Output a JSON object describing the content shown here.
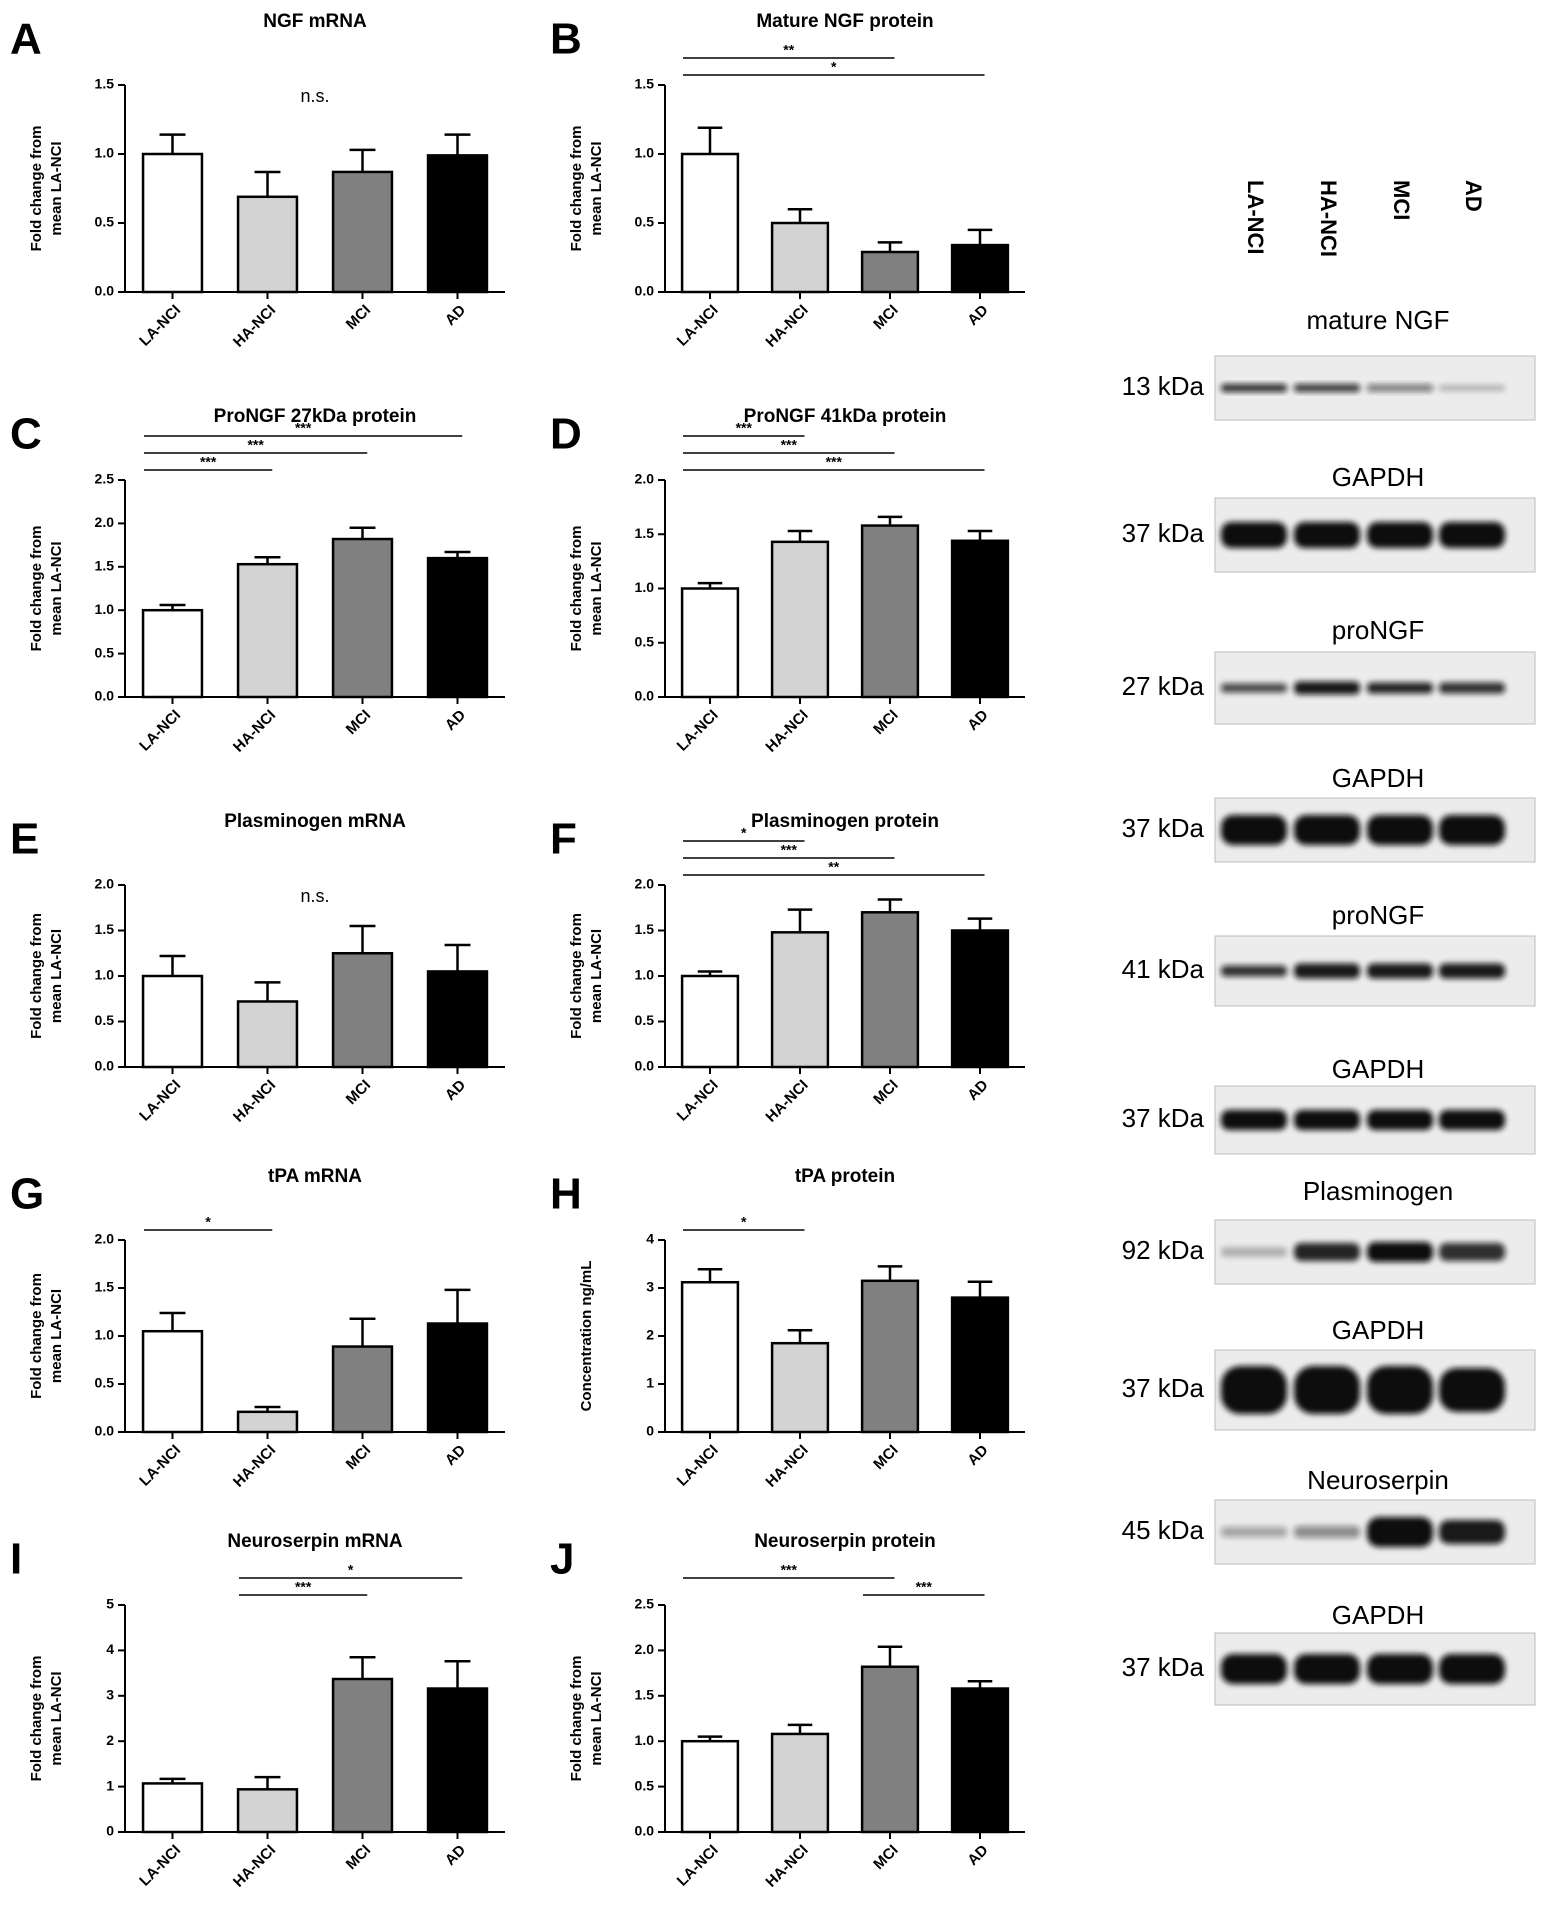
{
  "chart_data": [
    {
      "type": "bar",
      "panel": "A",
      "title": "NGF mRNA",
      "ylabel": [
        "Fold change from",
        "mean LA-NCI"
      ],
      "categories": [
        "LA-NCI",
        "HA-NCI",
        "MCI",
        "AD"
      ],
      "values": [
        1.0,
        0.69,
        0.87,
        0.99
      ],
      "errors": [
        0.14,
        0.18,
        0.16,
        0.15
      ],
      "colors": [
        "#ffffff",
        "#d3d3d3",
        "#808080",
        "#000000"
      ],
      "ylim": [
        0,
        1.5
      ],
      "yticks": [
        {
          "value": 0,
          "label": "0.0"
        },
        0.5,
        {
          "value": 1,
          "label": "1.0"
        },
        1.5
      ],
      "annotation": "n.s.",
      "brackets": []
    },
    {
      "type": "bar",
      "panel": "B",
      "title": "Mature NGF protein",
      "ylabel": [
        "Fold change from",
        "mean LA-NCI"
      ],
      "categories": [
        "LA-NCI",
        "HA-NCI",
        "MCI",
        "AD"
      ],
      "values": [
        1.0,
        0.5,
        0.29,
        0.34
      ],
      "errors": [
        0.19,
        0.1,
        0.07,
        0.11
      ],
      "colors": [
        "#ffffff",
        "#d3d3d3",
        "#808080",
        "#000000"
      ],
      "ylim": [
        0,
        1.5
      ],
      "yticks": [
        {
          "value": 0,
          "label": "0.0"
        },
        0.5,
        {
          "value": 1,
          "label": "1.0"
        },
        1.5
      ],
      "brackets": [
        {
          "label": "**",
          "span": [
            "LA-NCI",
            "MCI"
          ]
        },
        {
          "label": "*",
          "span": [
            "LA-NCI",
            "AD"
          ]
        }
      ]
    },
    {
      "type": "bar",
      "panel": "C",
      "title": "ProNGF 27kDa protein",
      "ylabel": [
        "Fold change from",
        "mean LA-NCI"
      ],
      "categories": [
        "LA-NCI",
        "HA-NCI",
        "MCI",
        "AD"
      ],
      "values": [
        1.0,
        1.53,
        1.82,
        1.6
      ],
      "errors": [
        0.06,
        0.08,
        0.13,
        0.07
      ],
      "colors": [
        "#ffffff",
        "#d3d3d3",
        "#808080",
        "#000000"
      ],
      "ylim": [
        0,
        2.5
      ],
      "yticks": [
        {
          "value": 0,
          "label": "0.0"
        },
        0.5,
        {
          "value": 1,
          "label": "1.0"
        },
        1.5,
        {
          "value": 2,
          "label": "2.0"
        },
        2.5
      ],
      "brackets": [
        {
          "label": "***",
          "span": [
            "LA-NCI",
            "AD"
          ]
        },
        {
          "label": "***",
          "span": [
            "LA-NCI",
            "MCI"
          ]
        },
        {
          "label": "***",
          "span": [
            "LA-NCI",
            "HA-NCI"
          ]
        }
      ]
    },
    {
      "type": "bar",
      "panel": "D",
      "title": "ProNGF 41kDa protein",
      "ylabel": [
        "Fold change from",
        "mean LA-NCI"
      ],
      "categories": [
        "LA-NCI",
        "HA-NCI",
        "MCI",
        "AD"
      ],
      "values": [
        1.0,
        1.43,
        1.58,
        1.44
      ],
      "errors": [
        0.05,
        0.1,
        0.08,
        0.09
      ],
      "colors": [
        "#ffffff",
        "#d3d3d3",
        "#808080",
        "#000000"
      ],
      "ylim": [
        0,
        2.0
      ],
      "yticks": [
        {
          "value": 0,
          "label": "0.0"
        },
        0.5,
        {
          "value": 1,
          "label": "1.0"
        },
        1.5,
        {
          "value": 2,
          "label": "2.0"
        }
      ],
      "brackets": [
        {
          "label": "***",
          "span": [
            "LA-NCI",
            "HA-NCI"
          ]
        },
        {
          "label": "***",
          "span": [
            "LA-NCI",
            "MCI"
          ]
        },
        {
          "label": "***",
          "span": [
            "LA-NCI",
            "AD"
          ]
        }
      ]
    },
    {
      "type": "bar",
      "panel": "E",
      "title": "Plasminogen mRNA",
      "ylabel": [
        "Fold change from",
        "mean LA-NCI"
      ],
      "categories": [
        "LA-NCI",
        "HA-NCI",
        "MCI",
        "AD"
      ],
      "values": [
        1.0,
        0.72,
        1.25,
        1.05
      ],
      "errors": [
        0.22,
        0.21,
        0.3,
        0.29
      ],
      "colors": [
        "#ffffff",
        "#d3d3d3",
        "#808080",
        "#000000"
      ],
      "ylim": [
        0,
        2.0
      ],
      "yticks": [
        {
          "value": 0,
          "label": "0.0"
        },
        0.5,
        {
          "value": 1,
          "label": "1.0"
        },
        1.5,
        {
          "value": 2,
          "label": "2.0"
        }
      ],
      "annotation": "n.s.",
      "brackets": []
    },
    {
      "type": "bar",
      "panel": "F",
      "title": "Plasminogen protein",
      "ylabel": [
        "Fold change from",
        "mean LA-NCI"
      ],
      "categories": [
        "LA-NCI",
        "HA-NCI",
        "MCI",
        "AD"
      ],
      "values": [
        1.0,
        1.48,
        1.7,
        1.5
      ],
      "errors": [
        0.05,
        0.25,
        0.14,
        0.13
      ],
      "colors": [
        "#ffffff",
        "#d3d3d3",
        "#808080",
        "#000000"
      ],
      "ylim": [
        0,
        2.0
      ],
      "yticks": [
        {
          "value": 0,
          "label": "0.0"
        },
        0.5,
        {
          "value": 1,
          "label": "1.0"
        },
        1.5,
        {
          "value": 2,
          "label": "2.0"
        }
      ],
      "brackets": [
        {
          "label": "*",
          "span": [
            "LA-NCI",
            "HA-NCI"
          ]
        },
        {
          "label": "***",
          "span": [
            "LA-NCI",
            "MCI"
          ]
        },
        {
          "label": "**",
          "span": [
            "LA-NCI",
            "AD"
          ]
        }
      ]
    },
    {
      "type": "bar",
      "panel": "G",
      "title": "tPA mRNA",
      "ylabel": [
        "Fold change from",
        "mean LA-NCI"
      ],
      "categories": [
        "LA-NCI",
        "HA-NCI",
        "MCI",
        "AD"
      ],
      "values": [
        1.05,
        0.21,
        0.89,
        1.13
      ],
      "errors": [
        0.19,
        0.05,
        0.29,
        0.35
      ],
      "colors": [
        "#ffffff",
        "#d3d3d3",
        "#808080",
        "#000000"
      ],
      "ylim": [
        0,
        2.0
      ],
      "yticks": [
        {
          "value": 0,
          "label": "0.0"
        },
        0.5,
        {
          "value": 1,
          "label": "1.0"
        },
        1.5,
        {
          "value": 2,
          "label": "2.0"
        }
      ],
      "brackets": [
        {
          "label": "*",
          "span": [
            "LA-NCI",
            "HA-NCI"
          ]
        }
      ]
    },
    {
      "type": "bar",
      "panel": "H",
      "title": "tPA protein",
      "ylabel": [
        "Concentration ng/mL"
      ],
      "categories": [
        "LA-NCI",
        "HA-NCI",
        "MCI",
        "AD"
      ],
      "values": [
        3.12,
        1.85,
        3.15,
        2.8
      ],
      "errors": [
        0.27,
        0.27,
        0.3,
        0.33
      ],
      "colors": [
        "#ffffff",
        "#d3d3d3",
        "#808080",
        "#000000"
      ],
      "ylim": [
        0,
        4
      ],
      "yticks": [
        0,
        1,
        2,
        3,
        4
      ],
      "brackets": [
        {
          "label": "*",
          "span": [
            "LA-NCI",
            "HA-NCI"
          ]
        }
      ]
    },
    {
      "type": "bar",
      "panel": "I",
      "title": "Neuroserpin mRNA",
      "ylabel": [
        "Fold change from",
        "mean LA-NCI"
      ],
      "categories": [
        "LA-NCI",
        "HA-NCI",
        "MCI",
        "AD"
      ],
      "values": [
        1.07,
        0.94,
        3.37,
        3.16
      ],
      "errors": [
        0.1,
        0.27,
        0.48,
        0.6
      ],
      "colors": [
        "#ffffff",
        "#d3d3d3",
        "#808080",
        "#000000"
      ],
      "ylim": [
        0,
        5
      ],
      "yticks": [
        0,
        1,
        2,
        3,
        4,
        5
      ],
      "brackets": [
        {
          "label": "*",
          "span": [
            "HA-NCI",
            "AD"
          ]
        },
        {
          "label": "***",
          "span": [
            "HA-NCI",
            "MCI"
          ]
        }
      ]
    },
    {
      "type": "bar",
      "panel": "J",
      "title": "Neuroserpin protein",
      "ylabel": [
        "Fold change from",
        "mean LA-NCI"
      ],
      "categories": [
        "LA-NCI",
        "HA-NCI",
        "MCI",
        "AD"
      ],
      "values": [
        1.0,
        1.08,
        1.82,
        1.58
      ],
      "errors": [
        0.05,
        0.1,
        0.22,
        0.08
      ],
      "colors": [
        "#ffffff",
        "#d3d3d3",
        "#808080",
        "#000000"
      ],
      "ylim": [
        0,
        2.5
      ],
      "yticks": [
        {
          "value": 0,
          "label": "0.0"
        },
        0.5,
        {
          "value": 1,
          "label": "1.0"
        },
        1.5,
        {
          "value": 2,
          "label": "2.0"
        },
        2.5
      ],
      "brackets": [
        {
          "label": "***",
          "span": [
            "LA-NCI",
            "MCI"
          ]
        },
        {
          "label": "***",
          "span": [
            "MCI",
            "AD"
          ]
        }
      ]
    }
  ],
  "blots": {
    "lanes": [
      "LA-NCI",
      "HA-NCI",
      "MCI",
      "AD"
    ],
    "rows": [
      {
        "protein": "mature NGF",
        "size": "13 kDa"
      },
      {
        "protein": "GAPDH",
        "size": "37 kDa"
      },
      {
        "protein": "proNGF",
        "size": "27 kDa"
      },
      {
        "protein": "GAPDH",
        "size": "37 kDa"
      },
      {
        "protein": "proNGF",
        "size": "41 kDa"
      },
      {
        "protein": "GAPDH",
        "size": "37 kDa"
      },
      {
        "protein": "Plasminogen",
        "size": "92 kDa"
      },
      {
        "protein": "GAPDH",
        "size": "37 kDa"
      },
      {
        "protein": "Neuroserpin",
        "size": "45 kDa"
      },
      {
        "protein": "GAPDH",
        "size": "37 kDa"
      }
    ]
  }
}
